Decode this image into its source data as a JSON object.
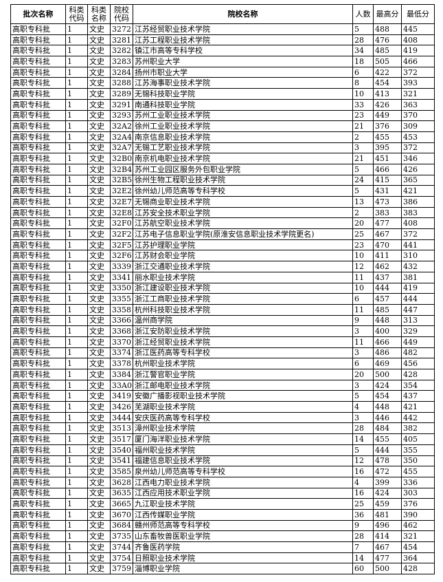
{
  "table": {
    "header": [
      "批次名称",
      "科类代码",
      "科类名称",
      "院校代码",
      "院校名称",
      "人数",
      "最高分",
      "最低分"
    ],
    "rows": [
      [
        "高职专科批",
        "1",
        "文史",
        "3272",
        "江苏经贸职业技术学院",
        5,
        488,
        445
      ],
      [
        "高职专科批",
        "1",
        "文史",
        "3281",
        "江苏工程职业技术学院",
        28,
        476,
        408
      ],
      [
        "高职专科批",
        "1",
        "文史",
        "3282",
        "镇江市高等专科学校",
        34,
        485,
        419
      ],
      [
        "高职专科批",
        "1",
        "文史",
        "3283",
        "苏州职业大学",
        18,
        505,
        466
      ],
      [
        "高职专科批",
        "1",
        "文史",
        "3284",
        "扬州市职业大学",
        6,
        422,
        372
      ],
      [
        "高职专科批",
        "1",
        "文史",
        "3288",
        "江苏海事职业技术学院",
        8,
        454,
        393
      ],
      [
        "高职专科批",
        "1",
        "文史",
        "3289",
        "无锡科技职业学院",
        10,
        413,
        321
      ],
      [
        "高职专科批",
        "1",
        "文史",
        "3291",
        "南通科技职业学院",
        33,
        426,
        363
      ],
      [
        "高职专科批",
        "1",
        "文史",
        "3293",
        "苏州工业职业技术学院",
        23,
        449,
        370
      ],
      [
        "高职专科批",
        "1",
        "文史",
        "32A2",
        "徐州工业职业技术学院",
        21,
        376,
        309
      ],
      [
        "高职专科批",
        "1",
        "文史",
        "32A4",
        "南京信息职业技术学院",
        2,
        455,
        453
      ],
      [
        "高职专科批",
        "1",
        "文史",
        "32A7",
        "无锡工艺职业技术学院",
        3,
        395,
        372
      ],
      [
        "高职专科批",
        "1",
        "文史",
        "32B0",
        "南京机电职业技术学院",
        21,
        451,
        346
      ],
      [
        "高职专科批",
        "1",
        "文史",
        "32B4",
        "苏州工业园区服务外包职业学院",
        5,
        466,
        426
      ],
      [
        "高职专科批",
        "1",
        "文史",
        "32B5",
        "徐州生物工程职业技术学院",
        24,
        415,
        365
      ],
      [
        "高职专科批",
        "1",
        "文史",
        "32E2",
        "徐州幼儿师范高等专科学校",
        5,
        431,
        421
      ],
      [
        "高职专科批",
        "1",
        "文史",
        "32E7",
        "无锡商业职业技术学院",
        13,
        473,
        386
      ],
      [
        "高职专科批",
        "1",
        "文史",
        "32E8",
        "江苏安全技术职业学院",
        2,
        383,
        383
      ],
      [
        "高职专科批",
        "1",
        "文史",
        "32F0",
        "江苏航空职业技术学院",
        20,
        477,
        408
      ],
      [
        "高职专科批",
        "1",
        "文史",
        "32F2",
        "江苏电子信息职业学院(原淮安信息职业技术学院更名)",
        25,
        467,
        372
      ],
      [
        "高职专科批",
        "1",
        "文史",
        "32F5",
        "江苏护理职业学院",
        23,
        470,
        441
      ],
      [
        "高职专科批",
        "1",
        "文史",
        "32F6",
        "江苏财会职业学院",
        10,
        411,
        310
      ],
      [
        "高职专科批",
        "1",
        "文史",
        "3339",
        "浙江交通职业技术学院",
        12,
        462,
        432
      ],
      [
        "高职专科批",
        "1",
        "文史",
        "3341",
        "丽水职业技术学院",
        11,
        437,
        381
      ],
      [
        "高职专科批",
        "1",
        "文史",
        "3350",
        "浙江建设职业技术学院",
        10,
        444,
        419
      ],
      [
        "高职专科批",
        "1",
        "文史",
        "3355",
        "浙江工商职业技术学院",
        6,
        457,
        444
      ],
      [
        "高职专科批",
        "1",
        "文史",
        "3358",
        "杭州科技职业技术学院",
        11,
        485,
        447
      ],
      [
        "高职专科批",
        "1",
        "文史",
        "3366",
        "温州商学院",
        9,
        448,
        313
      ],
      [
        "高职专科批",
        "1",
        "文史",
        "3368",
        "浙江安防职业技术学院",
        3,
        400,
        329
      ],
      [
        "高职专科批",
        "1",
        "文史",
        "3370",
        "浙江经贸职业技术学院",
        11,
        466,
        449
      ],
      [
        "高职专科批",
        "1",
        "文史",
        "3374",
        "浙江医药高等专科学校",
        3,
        486,
        482
      ],
      [
        "高职专科批",
        "1",
        "文史",
        "3378",
        "杭州职业技术学院",
        6,
        469,
        456
      ],
      [
        "高职专科批",
        "1",
        "文史",
        "3384",
        "浙江警官职业学院",
        20,
        500,
        428
      ],
      [
        "高职专科批",
        "1",
        "文史",
        "33A0",
        "浙江邮电职业技术学院",
        3,
        424,
        354
      ],
      [
        "高职专科批",
        "1",
        "文史",
        "3419",
        "安徽广播影视职业技术学院",
        5,
        454,
        437
      ],
      [
        "高职专科批",
        "1",
        "文史",
        "3426",
        "芜湖职业技术学院",
        4,
        448,
        421
      ],
      [
        "高职专科批",
        "1",
        "文史",
        "3444",
        "安庆医药高等专科学校",
        3,
        446,
        442
      ],
      [
        "高职专科批",
        "1",
        "文史",
        "3513",
        "漳州职业技术学院",
        28,
        484,
        382
      ],
      [
        "高职专科批",
        "1",
        "文史",
        "3517",
        "厦门海洋职业技术学院",
        14,
        455,
        405
      ],
      [
        "高职专科批",
        "1",
        "文史",
        "3540",
        "福州职业技术学院",
        5,
        444,
        355
      ],
      [
        "高职专科批",
        "1",
        "文史",
        "3541",
        "福建信息职业技术学院",
        12,
        478,
        350
      ],
      [
        "高职专科批",
        "1",
        "文史",
        "3585",
        "泉州幼儿师范高等专科学校",
        16,
        472,
        455
      ],
      [
        "高职专科批",
        "1",
        "文史",
        "3628",
        "江西电力职业技术学院",
        4,
        399,
        336
      ],
      [
        "高职专科批",
        "1",
        "文史",
        "3635",
        "江西应用技术职业学院",
        16,
        424,
        303
      ],
      [
        "高职专科批",
        "1",
        "文史",
        "3665",
        "九江职业技术学院",
        25,
        459,
        376
      ],
      [
        "高职专科批",
        "1",
        "文史",
        "3670",
        "江西传媒职业学院",
        36,
        481,
        390
      ],
      [
        "高职专科批",
        "1",
        "文史",
        "3684",
        "赣州师范高等专科学校",
        9,
        496,
        462
      ],
      [
        "高职专科批",
        "1",
        "文史",
        "3735",
        "山东畜牧兽医职业学院",
        28,
        414,
        321
      ],
      [
        "高职专科批",
        "1",
        "文史",
        "3744",
        "齐鲁医药学院",
        7,
        467,
        454
      ],
      [
        "高职专科批",
        "1",
        "文史",
        "3754",
        "日照职业技术学院",
        14,
        477,
        364
      ],
      [
        "高职专科批",
        "1",
        "文史",
        "3759",
        "淄博职业学院",
        60,
        500,
        428
      ]
    ]
  }
}
